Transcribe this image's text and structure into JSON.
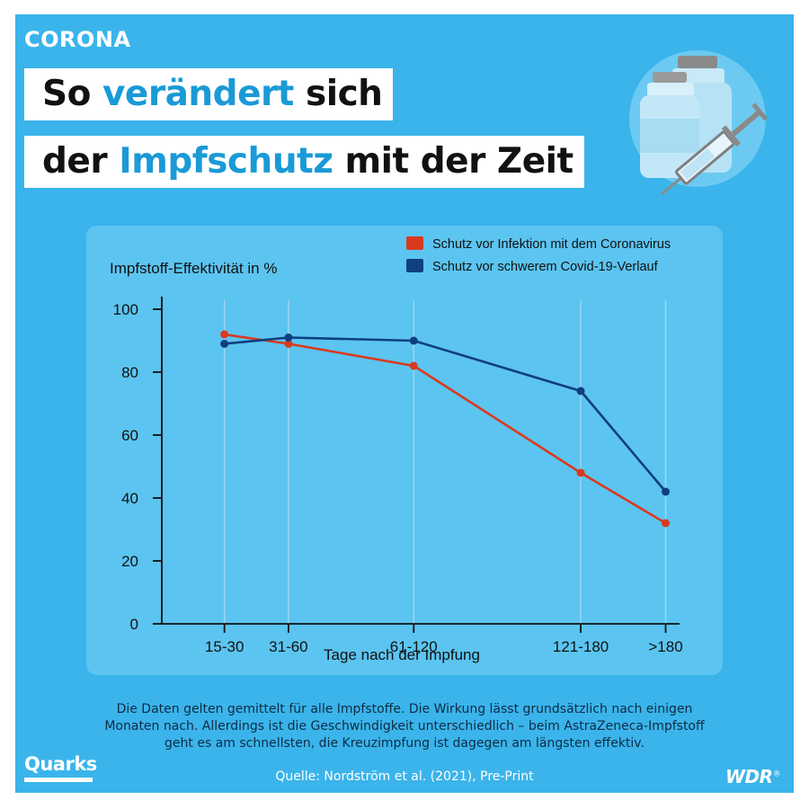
{
  "header": {
    "kicker": "CORONA",
    "line1_a": "So ",
    "line1_accent": "verändert",
    "line1_b": " sich",
    "line2_a": "der ",
    "line2_accent": "Impfschutz",
    "line2_b": " mit der Zeit"
  },
  "illustration": {
    "icon_name": "vaccine-syringe-icon"
  },
  "colors": {
    "background": "#3ab4eb",
    "panel": "#5cc4f0",
    "infection": "#d93a1e",
    "severe": "#0f3f80",
    "accent_text": "#1a9ad6"
  },
  "chart_data": {
    "type": "line",
    "title": "",
    "ylabel": "Impfstoff-Effektivität in %",
    "xlabel": "Tage nach der Impfung",
    "categories": [
      "15-30",
      "31-60",
      "61-120",
      "121-180",
      ">180"
    ],
    "x_positions_days": [
      22.5,
      45.5,
      90.5,
      150.5,
      181
    ],
    "ylim": [
      0,
      100
    ],
    "yticks": [
      0,
      20,
      40,
      60,
      80,
      100
    ],
    "grid": "vertical",
    "legend_position": "top-right",
    "series": [
      {
        "name": "Schutz vor Infektion mit dem Coronavirus",
        "color": "#d93a1e",
        "values": [
          92,
          89,
          82,
          48,
          32
        ]
      },
      {
        "name": "Schutz vor schwerem Covid-19-Verlauf",
        "color": "#0f3f80",
        "values": [
          89,
          91,
          90,
          74,
          42
        ]
      }
    ]
  },
  "footer": {
    "note_line1": "Die Daten gelten gemittelt für alle Impfstoffe. Die Wirkung lässt grundsätzlich nach einigen",
    "note_line2": "Monaten nach. Allerdings ist die Geschwindigkeit unterschiedlich – beim AstraZeneca-Impfstoff",
    "note_line3": "geht es am schnellsten, die Kreuzimpfung ist dagegen am längsten effektiv.",
    "source": "Quelle: Nordström et al. (2021), Pre-Print",
    "brand_left": "Quarks",
    "brand_right": "WDR",
    "brand_right_mark": "®"
  }
}
